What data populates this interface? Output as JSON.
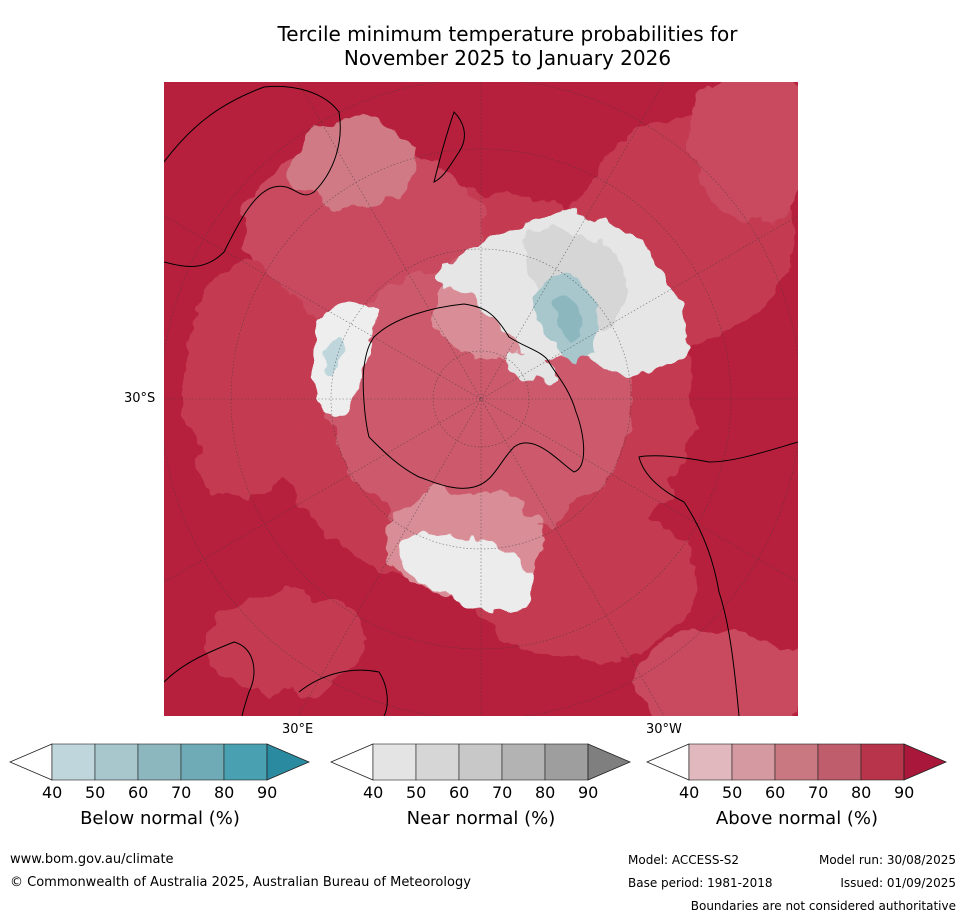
{
  "title_line1": "Tercile minimum temperature probabilities for",
  "title_line2": "November 2025 to January 2026",
  "map_labels": {
    "lat_30s": "30°S",
    "lon_30e": "30°E",
    "lon_30w": "30°W"
  },
  "colors": {
    "above": [
      "#ffffff",
      "#e0b8bd",
      "#d59aa1",
      "#c97881",
      "#c05d6c",
      "#b7344b",
      "#a9183a"
    ],
    "near": [
      "#ffffff",
      "#e4e4e4",
      "#d6d6d6",
      "#c8c8c8",
      "#b3b3b3",
      "#9e9e9e",
      "#7f7f7f"
    ],
    "below": [
      "#ffffff",
      "#bfd6dc",
      "#a7c7cd",
      "#8cb7be",
      "#6eabb6",
      "#48a0b1",
      "#2a8aa0"
    ]
  },
  "colorbars": [
    {
      "title": "Below normal (%)",
      "ticks": [
        "40",
        "50",
        "60",
        "70",
        "80",
        "90"
      ]
    },
    {
      "title": "Near normal (%)",
      "ticks": [
        "40",
        "50",
        "60",
        "70",
        "80",
        "90"
      ]
    },
    {
      "title": "Above normal (%)",
      "ticks": [
        "40",
        "50",
        "60",
        "70",
        "80",
        "90"
      ]
    }
  ],
  "footer": {
    "url": "www.bom.gov.au/climate",
    "copyright": "© Commonwealth of Australia 2025, Australian Bureau of Meteorology",
    "model": "Model: ACCESS-S2",
    "base_period": "Base period: 1981-2018",
    "model_run": "Model run: 30/08/2025",
    "issued": "Issued: 01/09/2025",
    "disclaimer": "Boundaries are not considered authoritative"
  }
}
